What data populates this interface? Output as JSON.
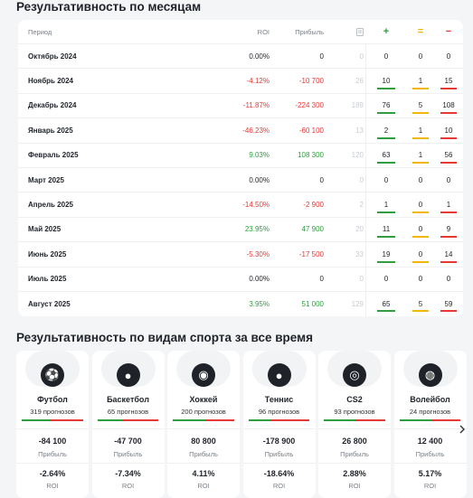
{
  "monthly": {
    "title": "Результативность по месяцам",
    "headers": {
      "period": "Период",
      "roi": "ROI",
      "profit": "Прибыль",
      "count_icon": "document-icon",
      "win_icon": "+",
      "draw_icon": "=",
      "loss_icon": "−"
    },
    "colors": {
      "win": "#2e9e3e",
      "draw": "#f2b705",
      "loss": "#e53935"
    },
    "rows": [
      {
        "period": "Октябрь 2024",
        "roi": "0.00%",
        "profit": "0",
        "count": "0",
        "wins": "0",
        "draws": "0",
        "losses": "0",
        "sign": "zero"
      },
      {
        "period": "Ноябрь 2024",
        "roi": "-4.12%",
        "profit": "-10 700",
        "count": "26",
        "wins": "10",
        "draws": "1",
        "losses": "15",
        "sign": "neg"
      },
      {
        "period": "Декабрь 2024",
        "roi": "-11.87%",
        "profit": "-224 300",
        "count": "189",
        "wins": "76",
        "draws": "5",
        "losses": "108",
        "sign": "neg"
      },
      {
        "period": "Январь 2025",
        "roi": "-46.23%",
        "profit": "-60 100",
        "count": "13",
        "wins": "2",
        "draws": "1",
        "losses": "10",
        "sign": "neg"
      },
      {
        "period": "Февраль 2025",
        "roi": "9.03%",
        "profit": "108 300",
        "count": "120",
        "wins": "63",
        "draws": "1",
        "losses": "56",
        "sign": "pos"
      },
      {
        "period": "Март 2025",
        "roi": "0.00%",
        "profit": "0",
        "count": "0",
        "wins": "0",
        "draws": "0",
        "losses": "0",
        "sign": "zero"
      },
      {
        "period": "Апрель 2025",
        "roi": "-14.50%",
        "profit": "-2 900",
        "count": "2",
        "wins": "1",
        "draws": "0",
        "losses": "1",
        "sign": "neg"
      },
      {
        "period": "Май 2025",
        "roi": "23.95%",
        "profit": "47 900",
        "count": "20",
        "wins": "11",
        "draws": "0",
        "losses": "9",
        "sign": "pos"
      },
      {
        "period": "Июнь 2025",
        "roi": "-5.30%",
        "profit": "-17 500",
        "count": "33",
        "wins": "19",
        "draws": "0",
        "losses": "14",
        "sign": "neg"
      },
      {
        "period": "Июль 2025",
        "roi": "0.00%",
        "profit": "0",
        "count": "0",
        "wins": "0",
        "draws": "0",
        "losses": "0",
        "sign": "zero"
      },
      {
        "period": "Август 2025",
        "roi": "3.95%",
        "profit": "51 000",
        "count": "129",
        "wins": "65",
        "draws": "5",
        "losses": "59",
        "sign": "pos"
      }
    ]
  },
  "sports": {
    "title": "Результативность по видам спорта за все время",
    "profit_label": "Прибыль",
    "roi_label": "ROI",
    "next_icon": "chevron-right-icon",
    "cards": [
      {
        "name": "Футбол",
        "forecasts": "319 прогнозов",
        "profit": "-84 100",
        "roi": "-2.64%",
        "icon": "soccer-ball-icon",
        "glyph": "⚽",
        "win_share": 0.45
      },
      {
        "name": "Баскетбол",
        "forecasts": "65 прогнозов",
        "profit": "-47 700",
        "roi": "-7.34%",
        "icon": "basketball-icon",
        "glyph": "●",
        "win_share": 0.42
      },
      {
        "name": "Хоккей",
        "forecasts": "200 прогнозов",
        "profit": "80 800",
        "roi": "4.11%",
        "icon": "hockey-puck-icon",
        "glyph": "◉",
        "win_share": 0.55
      },
      {
        "name": "Теннис",
        "forecasts": "96 прогнозов",
        "profit": "-178 900",
        "roi": "-18.64%",
        "icon": "tennis-ball-icon",
        "glyph": "●",
        "win_share": 0.38
      },
      {
        "name": "CS2",
        "forecasts": "93 прогнозов",
        "profit": "26 800",
        "roi": "2.88%",
        "icon": "cs2-icon",
        "glyph": "◎",
        "win_share": 0.52
      },
      {
        "name": "Волейбол",
        "forecasts": "24 прогнозов",
        "profit": "12 400",
        "roi": "5.17%",
        "icon": "volleyball-icon",
        "glyph": "◍",
        "win_share": 0.54
      }
    ]
  }
}
